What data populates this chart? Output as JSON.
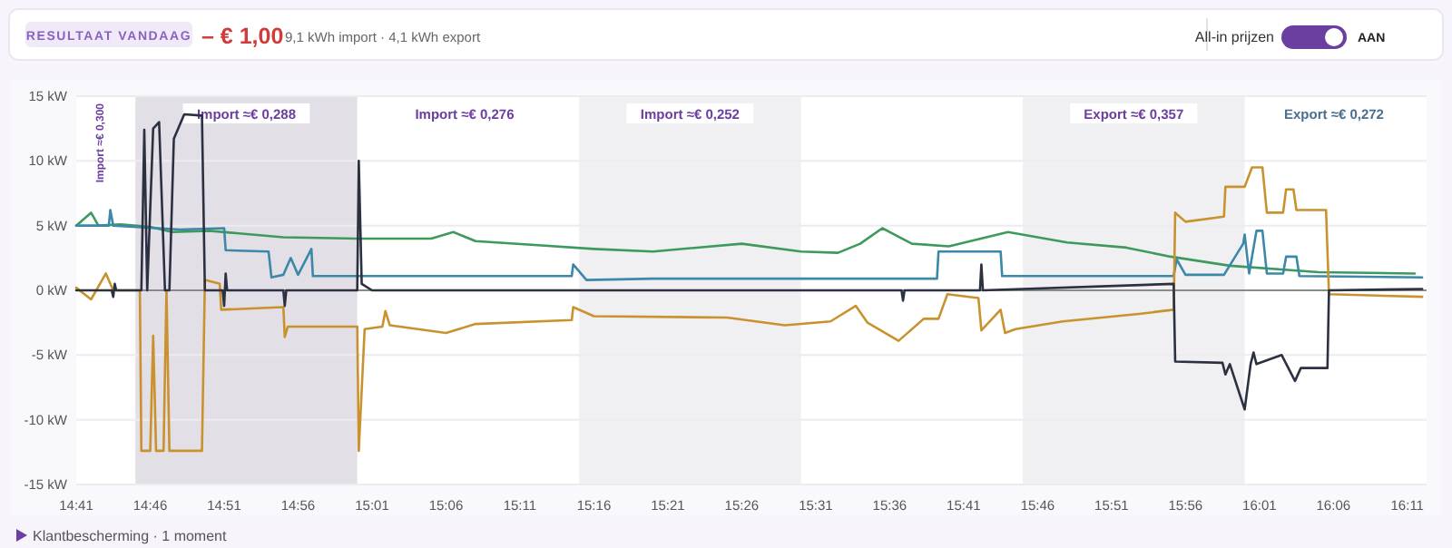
{
  "chart_data": {
    "type": "line",
    "title": "RESULTAAT VANDAAG",
    "subtitle": "– € 1,00",
    "annotations": [
      "9,1 kWh import · 4,1 kWh export",
      "All-in prijzen",
      "AAN",
      "Klantbescherming · 1 moment",
      "Import ≈€ 0,300",
      "Import ≈€ 0,276",
      "Export ≈€ 0,272"
    ],
    "xlim": [
      14.6833,
      16.205
    ],
    "xticks": [
      {
        "value": 14.6833,
        "label": "14:41"
      },
      {
        "value": 14.7667,
        "label": "14:46"
      },
      {
        "value": 14.85,
        "label": "14:51"
      },
      {
        "value": 14.9333,
        "label": "14:56"
      },
      {
        "value": 15.0167,
        "label": "15:01"
      },
      {
        "value": 15.1,
        "label": "15:06"
      },
      {
        "value": 15.1833,
        "label": "15:11"
      },
      {
        "value": 15.2667,
        "label": "15:16"
      },
      {
        "value": 15.35,
        "label": "15:21"
      },
      {
        "value": 15.4333,
        "label": "15:26"
      },
      {
        "value": 15.5167,
        "label": "15:31"
      },
      {
        "value": 15.6,
        "label": "15:36"
      },
      {
        "value": 15.6833,
        "label": "15:41"
      },
      {
        "value": 15.7667,
        "label": "15:46"
      },
      {
        "value": 15.85,
        "label": "15:51"
      },
      {
        "value": 15.9333,
        "label": "15:56"
      },
      {
        "value": 16.0167,
        "label": "16:01"
      },
      {
        "value": 16.1,
        "label": "16:06"
      },
      {
        "value": 16.1833,
        "label": "16:11"
      }
    ],
    "ylim": [
      -15,
      15
    ],
    "yticks": [
      {
        "value": -15,
        "label": "-15 kW"
      },
      {
        "value": -10,
        "label": "-10 kW"
      },
      {
        "value": -5,
        "label": "-5 kW"
      },
      {
        "value": 0,
        "label": "0 kW"
      },
      {
        "value": 5,
        "label": "5 kW"
      },
      {
        "value": 10,
        "label": "10 kW"
      },
      {
        "value": 15,
        "label": "15 kW"
      }
    ],
    "grid": "y",
    "marker": "none",
    "line_style": "solid",
    "bands": [
      {
        "axis": "x",
        "from": 14.75,
        "to": 15.0,
        "label": "Import ≈€ 0,288",
        "color": "#e3dfe7"
      },
      {
        "axis": "x",
        "from": 15.25,
        "to": 15.5,
        "label": "Import ≈€ 0,252",
        "color": "#f0f0f2"
      },
      {
        "axis": "x",
        "from": 15.75,
        "to": 16.0,
        "label": "Export ≈€ 0,357",
        "color": "#f0f0f2"
      }
    ],
    "series": [
      {
        "color": "#3d9a5c",
        "x": [
          14.6833,
          14.7,
          14.7083,
          14.7333,
          14.7667,
          14.7917,
          14.8333,
          14.8667,
          14.9167,
          15.0,
          15.0833,
          15.1083,
          15.1333,
          15.2,
          15.2667,
          15.3333,
          15.4333,
          15.5,
          15.5417,
          15.5667,
          15.5917,
          15.625,
          15.6667,
          15.7333,
          15.8,
          15.8667,
          15.9167,
          15.9833,
          16.0833,
          16.1917
        ],
        "values": [
          5.0,
          6.0,
          5.0,
          5.1,
          4.9,
          4.5,
          4.6,
          4.4,
          4.1,
          4.0,
          4.0,
          4.5,
          3.8,
          3.5,
          3.2,
          3.0,
          3.6,
          3.0,
          2.9,
          3.6,
          4.8,
          3.6,
          3.4,
          4.5,
          3.7,
          3.3,
          2.6,
          1.9,
          1.4,
          1.3
        ]
      },
      {
        "color": "#3b88a8",
        "x": [
          14.6833,
          14.72,
          14.7217,
          14.725,
          14.8,
          14.85,
          14.8517,
          14.9,
          14.9033,
          14.9167,
          14.925,
          14.9333,
          14.9483,
          14.95,
          15.1,
          15.2417,
          15.2433,
          15.2583,
          15.3333,
          15.6533,
          15.655,
          15.725,
          15.7267,
          15.92,
          15.9233,
          15.9333,
          15.9767,
          15.9983,
          16.0,
          16.005,
          16.0133,
          16.02,
          16.025,
          16.0433,
          16.0467,
          16.0583,
          16.0617,
          16.2
        ],
        "values": [
          5.0,
          5.0,
          6.2,
          5.0,
          4.7,
          4.8,
          3.1,
          3.0,
          1.0,
          1.2,
          2.5,
          1.2,
          3.2,
          1.1,
          1.1,
          1.1,
          2.0,
          0.8,
          0.9,
          0.9,
          3.0,
          3.0,
          1.1,
          1.1,
          2.4,
          1.2,
          1.2,
          3.6,
          4.3,
          1.3,
          4.6,
          4.6,
          1.3,
          1.3,
          2.6,
          2.6,
          1.1,
          1.0
        ]
      },
      {
        "color": "#c9922e",
        "x": [
          14.6833,
          14.7,
          14.7167,
          14.725,
          14.755,
          14.7567,
          14.7667,
          14.77,
          14.7733,
          14.7817,
          14.785,
          14.7883,
          14.825,
          14.8283,
          14.845,
          14.8467,
          14.9167,
          14.9183,
          14.9217,
          15.0,
          15.0017,
          15.0083,
          15.0283,
          15.0317,
          15.0367,
          15.1,
          15.1333,
          15.2417,
          15.2433,
          15.2667,
          15.4167,
          15.4817,
          15.5333,
          15.5617,
          15.575,
          15.61,
          15.6383,
          15.655,
          15.665,
          15.7,
          15.7033,
          15.725,
          15.73,
          15.7417,
          15.795,
          15.8833,
          15.92,
          15.9217,
          15.9333,
          15.9767,
          15.9783,
          16.0,
          16.0083,
          16.02,
          16.025,
          16.0433,
          16.0467,
          16.055,
          16.0583,
          16.0917,
          16.095,
          16.2
        ],
        "values": [
          0.2,
          -0.7,
          1.3,
          0,
          0,
          -12.4,
          -12.4,
          -3.5,
          -12.4,
          -12.4,
          0,
          -12.4,
          -12.4,
          0.8,
          0.5,
          -1.5,
          -1.3,
          -3.6,
          -2.8,
          -2.8,
          -12.4,
          -3.0,
          -2.8,
          -1.6,
          -2.7,
          -3.3,
          -2.6,
          -2.3,
          -1.3,
          -2.0,
          -2.1,
          -2.7,
          -2.4,
          -1.2,
          -2.5,
          -3.9,
          -2.2,
          -2.2,
          -0.3,
          -0.6,
          -3.1,
          -1.5,
          -3.3,
          -3.0,
          -2.4,
          -1.8,
          -1.5,
          6.0,
          5.3,
          5.7,
          8.0,
          8.0,
          9.5,
          9.5,
          6.0,
          6.0,
          7.8,
          7.8,
          6.2,
          6.2,
          -0.3,
          -0.5
        ]
      },
      {
        "color": "#2c3142",
        "x": [
          14.6833,
          14.7233,
          14.725,
          14.7267,
          14.7283,
          14.7567,
          14.76,
          14.7633,
          14.77,
          14.7767,
          14.7833,
          14.7883,
          14.7933,
          14.805,
          14.825,
          14.8283,
          14.8483,
          14.85,
          14.8517,
          14.8533,
          14.9167,
          14.9183,
          14.92,
          15.0,
          15.0017,
          15.005,
          15.0167,
          15.6133,
          15.615,
          15.6167,
          15.7017,
          15.7033,
          15.705,
          15.92,
          15.9217,
          15.975,
          15.9783,
          15.9833,
          16.0,
          16.0067,
          16.01,
          16.0133,
          16.0417,
          16.0567,
          16.0633,
          16.0933,
          16.095,
          16.2
        ],
        "values": [
          0,
          0,
          -0.5,
          0.5,
          0,
          0,
          12.4,
          0,
          12.5,
          13.0,
          0,
          0,
          11.7,
          13.6,
          13.5,
          0,
          0,
          -1.2,
          1.3,
          0,
          0,
          -1.2,
          0,
          0,
          10.0,
          0.5,
          0,
          0,
          -0.8,
          0,
          0,
          2.0,
          0,
          0.5,
          -5.5,
          -5.6,
          -6.5,
          -5.7,
          -9.2,
          -5.7,
          -4.8,
          -5.7,
          -5.0,
          -7.0,
          -6.0,
          -6.0,
          0,
          0.1
        ]
      }
    ]
  }
}
